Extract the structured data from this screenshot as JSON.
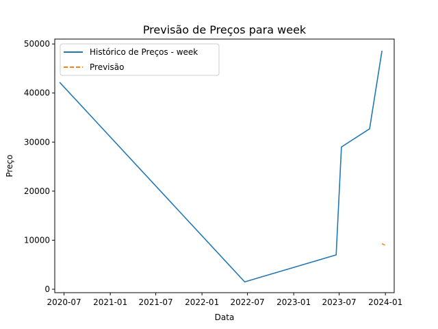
{
  "chart_data": {
    "type": "line",
    "title": "Previsão de Preços para week",
    "xlabel": "Data",
    "ylabel": "Preço",
    "x_range": [
      "2020-05-25",
      "2024-02-05"
    ],
    "ylim": [
      -700,
      51000
    ],
    "x_ticks": [
      {
        "date": "2020-07-01",
        "label": "2020-07"
      },
      {
        "date": "2021-01-01",
        "label": "2021-01"
      },
      {
        "date": "2021-07-01",
        "label": "2021-07"
      },
      {
        "date": "2022-01-01",
        "label": "2022-01"
      },
      {
        "date": "2022-07-01",
        "label": "2022-07"
      },
      {
        "date": "2023-01-01",
        "label": "2023-01"
      },
      {
        "date": "2023-07-01",
        "label": "2023-07"
      },
      {
        "date": "2024-01-01",
        "label": "2024-01"
      }
    ],
    "y_ticks": [
      0,
      10000,
      20000,
      30000,
      40000,
      50000
    ],
    "grid": false,
    "legend_position": "top-left",
    "series": [
      {
        "name": "Histórico de Preços - week",
        "style": "solid",
        "color": "#1f77b4",
        "points": [
          {
            "x": "2020-06-15",
            "y": 42100
          },
          {
            "x": "2022-06-20",
            "y": 1500
          },
          {
            "x": "2023-06-19",
            "y": 7000
          },
          {
            "x": "2023-07-10",
            "y": 29000
          },
          {
            "x": "2023-10-30",
            "y": 32700
          },
          {
            "x": "2023-12-18",
            "y": 48500
          }
        ]
      },
      {
        "name": "Previsão",
        "style": "dashed",
        "color": "#ff7f0e",
        "points": [
          {
            "x": "2023-12-18",
            "y": 9300
          },
          {
            "x": "2023-12-30",
            "y": 9000
          }
        ]
      }
    ]
  }
}
